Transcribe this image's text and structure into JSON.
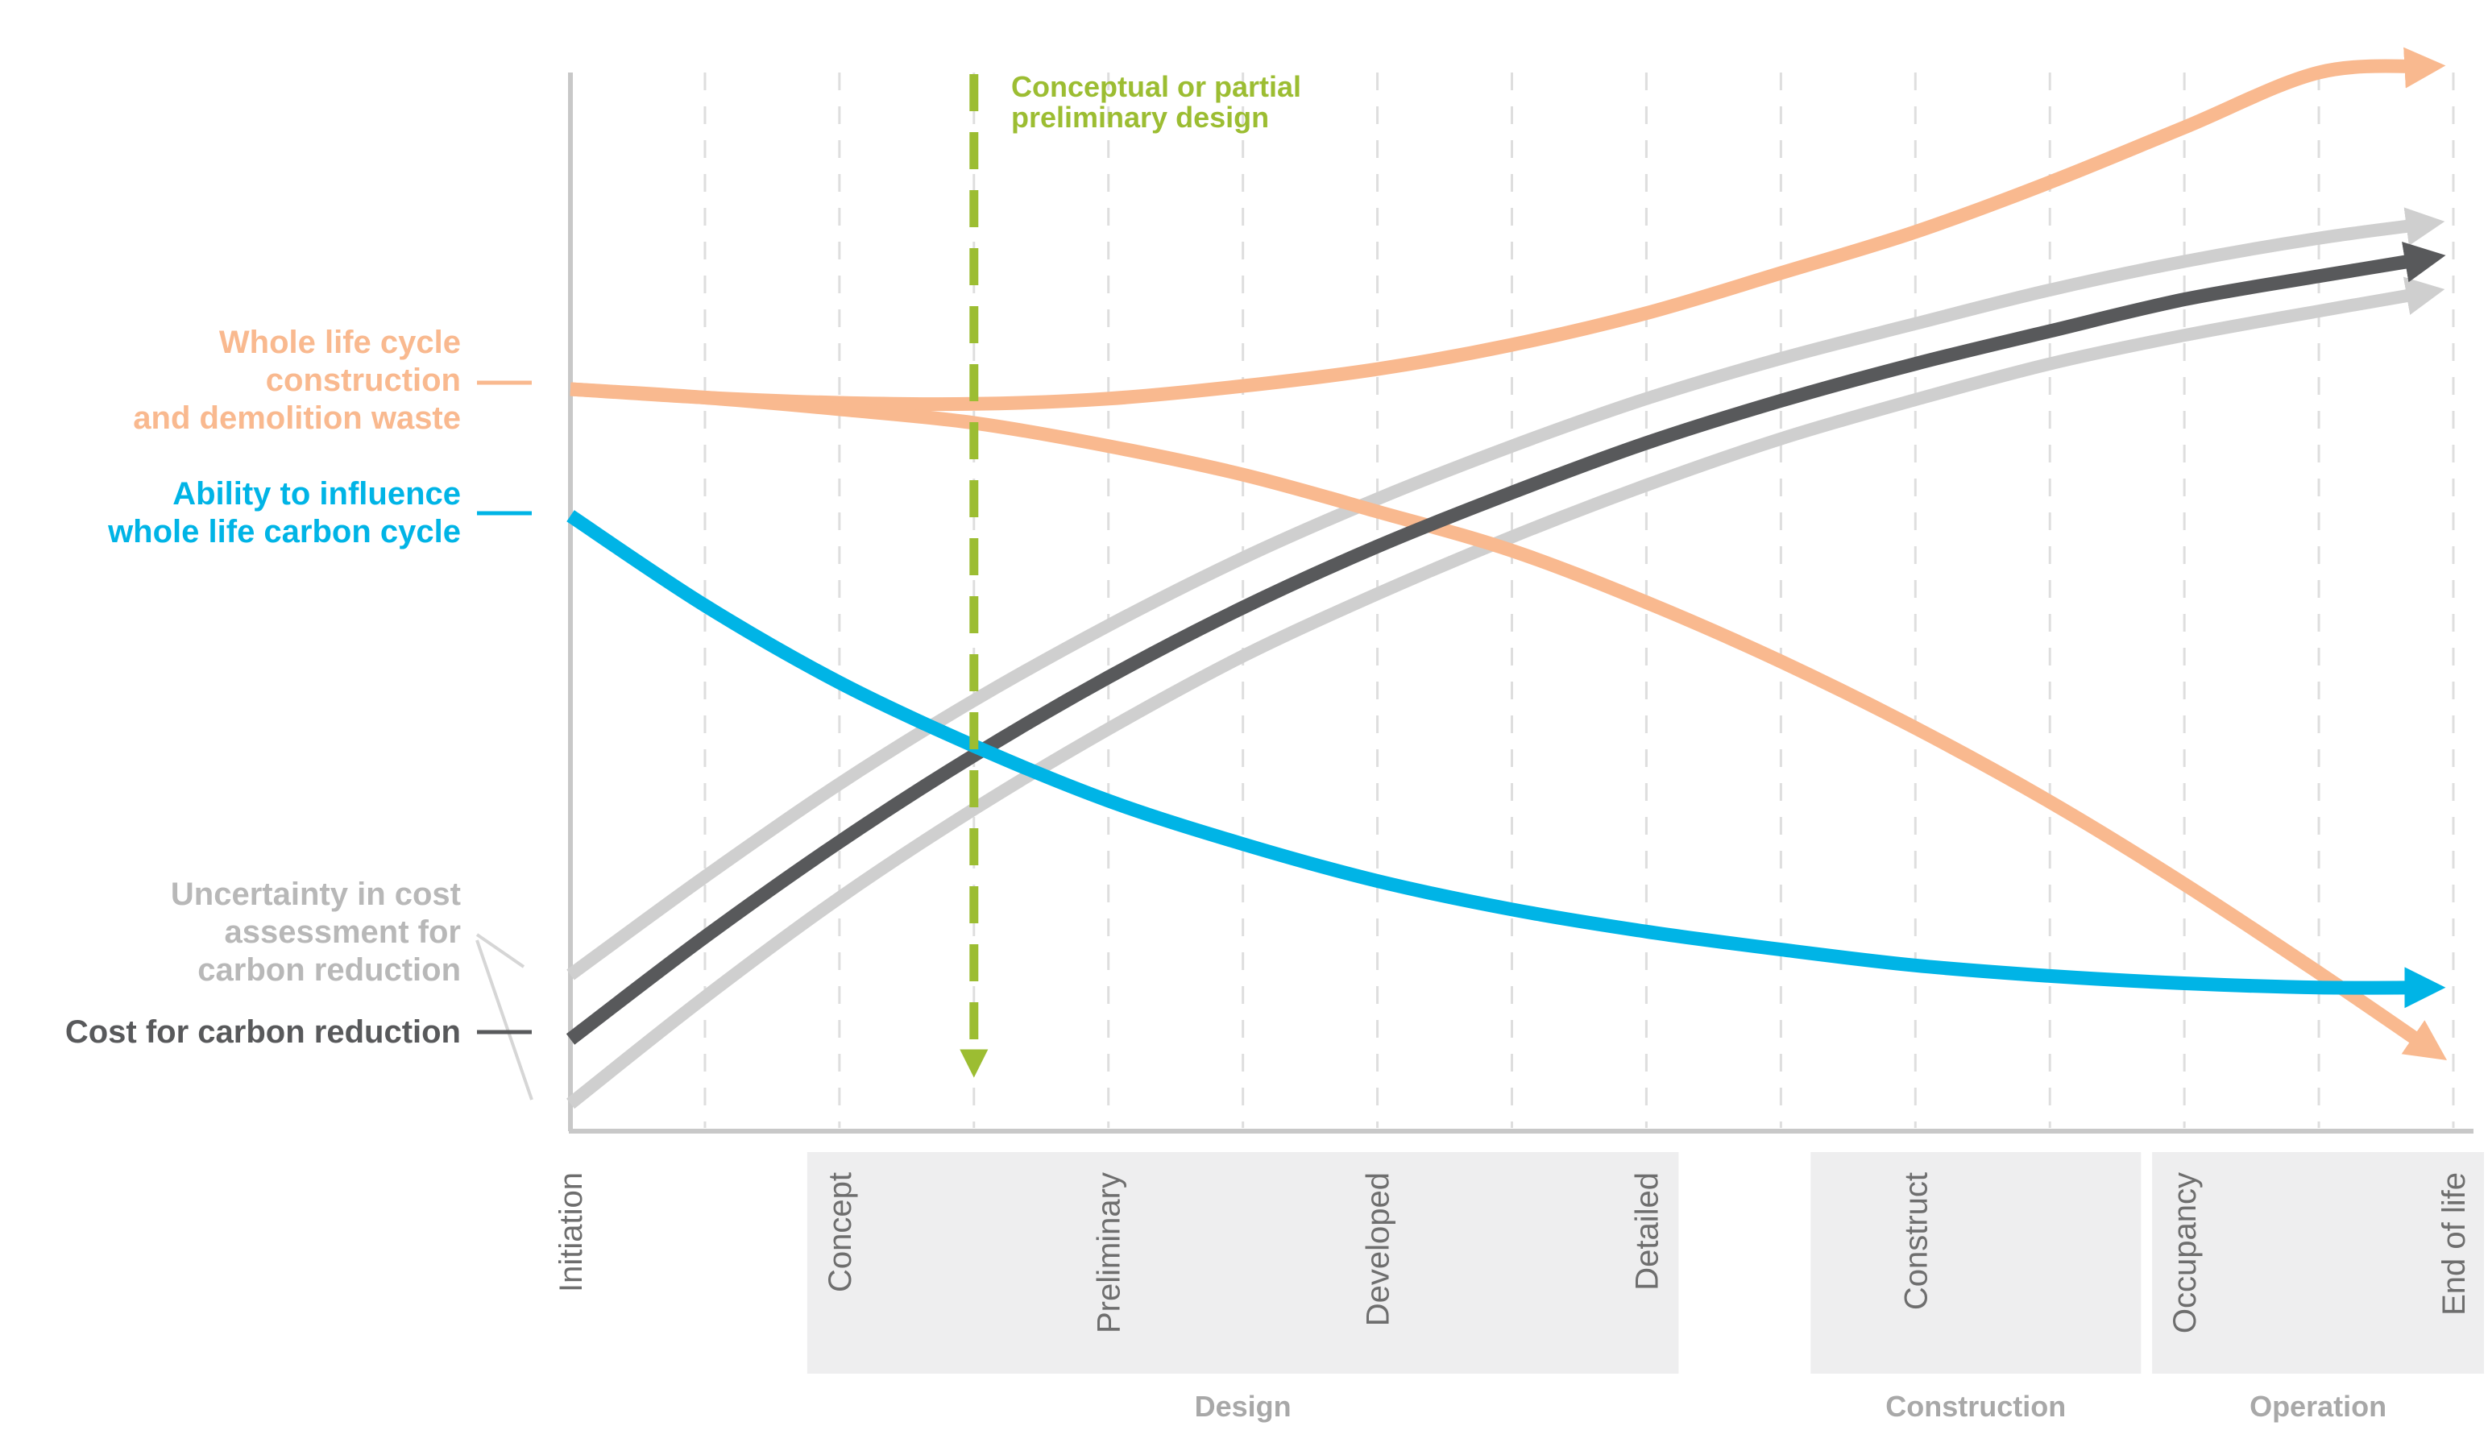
{
  "chart_data": {
    "type": "line",
    "title": "",
    "xlabel": "",
    "ylabel": "",
    "grid": "vertical dashed",
    "colors": {
      "waste": "#f9b98f",
      "influence": "#00b4e6",
      "uncertainty": "#cfcfcf",
      "cost": "#58595b",
      "annotation": "#9cbd32",
      "axis": "#c8c8c8",
      "phase_band": "#eeeeef"
    },
    "x_stages": [
      "Initiation",
      "Concept",
      "Preliminary",
      "Developed",
      "Detailed",
      "Construct",
      "Occupancy",
      "End of life"
    ],
    "phases": [
      {
        "name": "Design",
        "from": 1,
        "to": 4
      },
      {
        "name": "Construction",
        "from": 5,
        "to": 5
      },
      {
        "name": "Operation",
        "from": 6,
        "to": 7
      }
    ],
    "annotation": {
      "label_line1": "Conceptual or partial",
      "label_line2": "preliminary design",
      "x": 1.5
    },
    "ylim": [
      0,
      100
    ],
    "series": [
      {
        "name": "Whole life cycle construction and demolition waste",
        "label_lines": [
          "Whole life cycle",
          "construction",
          "and demolition waste"
        ],
        "color_key": "waste",
        "points": [
          [
            0,
            70.0
          ],
          [
            0.5,
            69.2
          ],
          [
            1.0,
            68.7
          ],
          [
            1.5,
            68.6
          ],
          [
            2.0,
            69.1
          ],
          [
            2.5,
            70.3
          ],
          [
            3.0,
            71.9
          ],
          [
            3.5,
            74.2
          ],
          [
            4.0,
            77.2
          ],
          [
            4.5,
            81.0
          ],
          [
            5.0,
            84.9
          ],
          [
            5.5,
            89.6
          ],
          [
            6.0,
            94.8
          ],
          [
            6.5,
            100.0
          ],
          [
            7.0,
            100.7
          ]
        ]
      },
      {
        "name": "Whole life cycle construction and demolition waste (declining)",
        "label_lines": [],
        "color_key": "waste",
        "points": [
          [
            0,
            70.0
          ],
          [
            0.5,
            69.2
          ],
          [
            1.0,
            68.1
          ],
          [
            1.5,
            66.8
          ],
          [
            2.0,
            64.6
          ],
          [
            2.5,
            61.9
          ],
          [
            3.0,
            58.4
          ],
          [
            3.5,
            54.7
          ],
          [
            4.0,
            49.8
          ],
          [
            4.5,
            44.2
          ],
          [
            5.0,
            37.9
          ],
          [
            5.5,
            30.9
          ],
          [
            6.0,
            23.1
          ],
          [
            6.5,
            14.7
          ],
          [
            7.0,
            6.0
          ]
        ]
      },
      {
        "name": "Ability to influence whole life carbon cycle",
        "label_lines": [
          "Ability to influence",
          "whole life carbon cycle"
        ],
        "color_key": "influence",
        "points": [
          [
            0,
            58.0
          ],
          [
            0.5,
            49.5
          ],
          [
            1.0,
            42.2
          ],
          [
            1.5,
            36.2
          ],
          [
            2.0,
            31.0
          ],
          [
            2.5,
            26.9
          ],
          [
            3.0,
            23.4
          ],
          [
            3.5,
            20.7
          ],
          [
            4.0,
            18.6
          ],
          [
            4.5,
            16.9
          ],
          [
            5.0,
            15.4
          ],
          [
            5.5,
            14.4
          ],
          [
            6.0,
            13.7
          ],
          [
            6.5,
            13.3
          ],
          [
            7.0,
            13.3
          ]
        ]
      },
      {
        "name": "Uncertainty in cost assessment for carbon reduction (upper)",
        "label_lines": [
          "Uncertainty in cost",
          "assessment for",
          "carbon reduction"
        ],
        "color_key": "uncertainty",
        "points": [
          [
            0,
            14.5
          ],
          [
            0.5,
            23.8
          ],
          [
            1.0,
            32.6
          ],
          [
            1.5,
            40.5
          ],
          [
            2.0,
            47.6
          ],
          [
            2.5,
            54.0
          ],
          [
            3.0,
            59.6
          ],
          [
            3.5,
            64.6
          ],
          [
            4.0,
            69.1
          ],
          [
            4.5,
            72.9
          ],
          [
            5.0,
            76.2
          ],
          [
            5.5,
            79.4
          ],
          [
            6.0,
            82.1
          ],
          [
            6.5,
            84.3
          ],
          [
            7.0,
            86.0
          ]
        ]
      },
      {
        "name": "Uncertainty in cost assessment for carbon reduction (lower)",
        "label_lines": [],
        "color_key": "uncertainty",
        "points": [
          [
            0,
            2.3
          ],
          [
            0.5,
            12.4
          ],
          [
            1.0,
            21.8
          ],
          [
            1.5,
            30.2
          ],
          [
            2.0,
            37.8
          ],
          [
            2.5,
            44.7
          ],
          [
            3.0,
            50.6
          ],
          [
            3.5,
            56.0
          ],
          [
            4.0,
            60.9
          ],
          [
            4.5,
            65.3
          ],
          [
            5.0,
            69.0
          ],
          [
            5.5,
            72.4
          ],
          [
            6.0,
            75.1
          ],
          [
            6.5,
            77.4
          ],
          [
            7.0,
            79.6
          ]
        ]
      },
      {
        "name": "Cost for carbon reduction",
        "label_lines": [
          "Cost for carbon reduction"
        ],
        "color_key": "cost",
        "points": [
          [
            0,
            8.4
          ],
          [
            0.5,
            18.1
          ],
          [
            1.0,
            27.1
          ],
          [
            1.5,
            35.3
          ],
          [
            2.0,
            42.7
          ],
          [
            2.5,
            49.3
          ],
          [
            3.0,
            55.1
          ],
          [
            3.5,
            60.2
          ],
          [
            4.0,
            64.9
          ],
          [
            4.5,
            68.9
          ],
          [
            5.0,
            72.4
          ],
          [
            5.5,
            75.5
          ],
          [
            6.0,
            78.5
          ],
          [
            6.5,
            80.7
          ],
          [
            7.0,
            82.8
          ]
        ]
      }
    ]
  }
}
